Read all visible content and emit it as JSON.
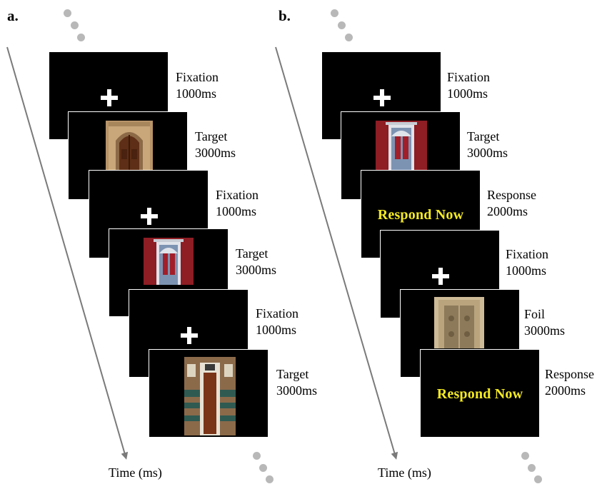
{
  "panels": {
    "a": {
      "label": "a.",
      "time_label": "Time (ms)",
      "steps": [
        {
          "name": "Fixation",
          "duration": "1000ms"
        },
        {
          "name": "Target",
          "duration": "3000ms"
        },
        {
          "name": "Fixation",
          "duration": "1000ms"
        },
        {
          "name": "Target",
          "duration": "3000ms"
        },
        {
          "name": "Fixation",
          "duration": "1000ms"
        },
        {
          "name": "Target",
          "duration": "3000ms"
        }
      ]
    },
    "b": {
      "label": "b.",
      "time_label": "Time (ms)",
      "steps": [
        {
          "name": "Fixation",
          "duration": "1000ms"
        },
        {
          "name": "Target",
          "duration": "3000ms"
        },
        {
          "name": "Response",
          "duration": "2000ms",
          "screen_text": "Respond Now"
        },
        {
          "name": "Fixation",
          "duration": "1000ms"
        },
        {
          "name": "Foil",
          "duration": "3000ms"
        },
        {
          "name": "Response",
          "duration": "2000ms",
          "screen_text": "Respond Now"
        }
      ]
    }
  },
  "colors": {
    "screen": "#000000",
    "respond_text": "#f4ea22",
    "arrow": "#7a7a7a",
    "dots": "#b8b8b8"
  }
}
